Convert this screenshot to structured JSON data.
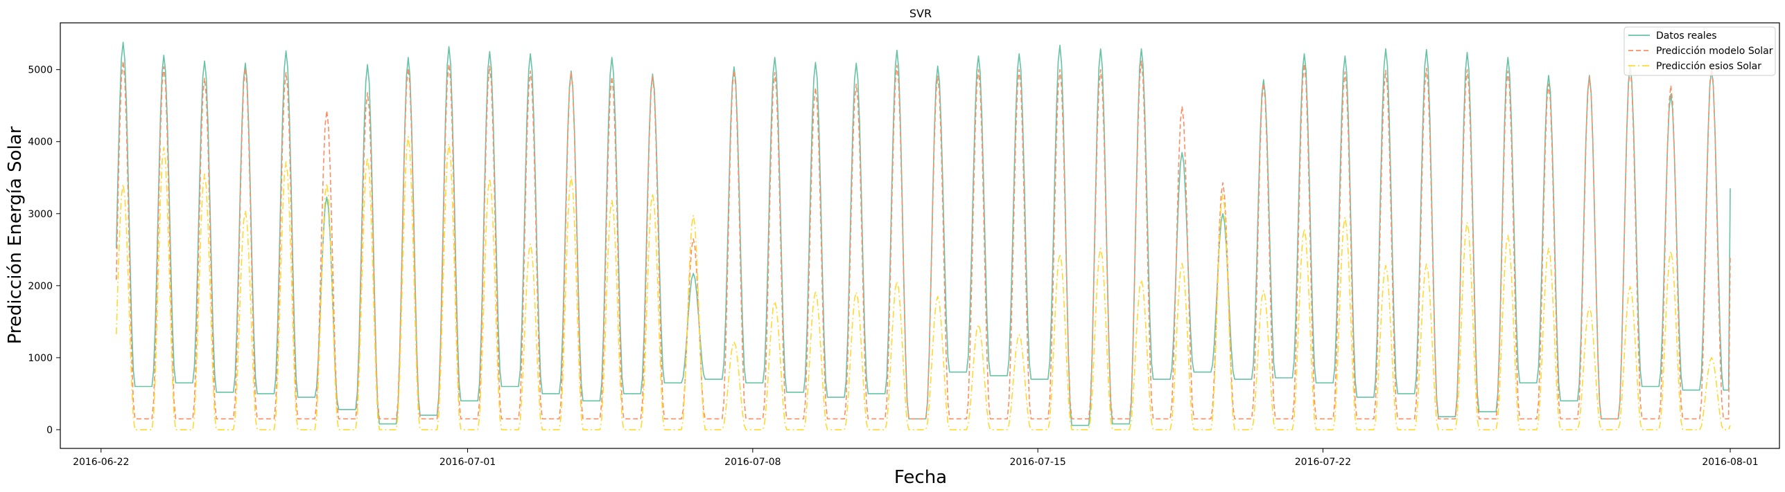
{
  "chart_data": {
    "type": "line",
    "title": "SVR",
    "xlabel": "Fecha",
    "ylabel": "Predicción Energía Solar",
    "xlim": [
      "2016-06-21T00:00",
      "2016-08-02T05:00"
    ],
    "ylim": [
      -260,
      5650
    ],
    "x_ticks": [
      "2016-06-22",
      "2016-07-01",
      "2016-07-08",
      "2016-07-15",
      "2016-07-22",
      "2016-08-01"
    ],
    "y_ticks": [
      0,
      1000,
      2000,
      3000,
      4000,
      5000
    ],
    "grid": false,
    "legend": "top-right",
    "x_start": "2016-06-22",
    "days": 40,
    "sampling": "hourly",
    "series": [
      {
        "name": "Datos reales",
        "color": "#66c2a5",
        "style": "solid",
        "night_values": [
          700,
          600,
          650,
          520,
          500,
          450,
          280,
          80,
          200,
          400,
          600,
          500,
          400,
          500,
          650,
          700,
          650,
          520,
          450,
          500,
          150,
          800,
          750,
          700,
          60,
          80,
          700,
          800,
          700,
          720,
          650,
          450,
          500,
          180,
          250,
          650,
          400,
          150,
          600,
          550
        ],
        "daily_peaks": [
          5380,
          5200,
          5120,
          5090,
          5260,
          3230,
          5070,
          5170,
          5320,
          5250,
          5220,
          4980,
          5170,
          4940,
          2170,
          5040,
          5170,
          5100,
          5090,
          5270,
          5050,
          5190,
          5220,
          5340,
          5290,
          5290,
          3850,
          3000,
          4860,
          5220,
          5190,
          5290,
          5280,
          5240,
          5170,
          4920,
          4920,
          5060,
          4660,
          5000
        ],
        "last_value": 3350
      },
      {
        "name": "Predicción modelo Solar",
        "color": "#fc8d62",
        "style": "dashed",
        "night_values": [
          150,
          150,
          150,
          150,
          150,
          150,
          150,
          150,
          150,
          150,
          150,
          150,
          150,
          150,
          150,
          150,
          150,
          150,
          150,
          150,
          150,
          150,
          150,
          150,
          150,
          150,
          150,
          150,
          150,
          150,
          150,
          150,
          150,
          150,
          150,
          150,
          150,
          150,
          150,
          150
        ],
        "daily_peaks": [
          5120,
          5040,
          4880,
          5020,
          4960,
          4430,
          4680,
          5020,
          5080,
          5050,
          4980,
          4970,
          4900,
          4910,
          2650,
          4990,
          4960,
          4750,
          4800,
          5060,
          4910,
          5000,
          5000,
          5000,
          5000,
          5120,
          4490,
          3430,
          4810,
          5080,
          4970,
          4990,
          5020,
          5000,
          4980,
          4800,
          4900,
          5020,
          4780,
          5050
        ],
        "last_value": 2400
      },
      {
        "name": "Predicción esios Solar",
        "color": "#ffd92f",
        "style": "dashdot",
        "night_values": [
          0,
          0,
          0,
          0,
          0,
          0,
          0,
          0,
          0,
          0,
          0,
          0,
          0,
          0,
          0,
          0,
          0,
          0,
          0,
          0,
          0,
          0,
          0,
          0,
          0,
          0,
          0,
          0,
          0,
          0,
          0,
          0,
          0,
          0,
          0,
          0,
          0,
          0,
          0,
          0
        ],
        "daily_peaks": [
          3410,
          3920,
          3550,
          3040,
          3720,
          3420,
          3780,
          4070,
          3970,
          3490,
          2580,
          3520,
          3190,
          3280,
          2980,
          1220,
          1780,
          1910,
          1910,
          2060,
          1850,
          1460,
          1320,
          2440,
          2520,
          2080,
          2310,
          3270,
          1930,
          2790,
          2950,
          2280,
          2300,
          2880,
          2700,
          2520,
          1700,
          1990,
          2480,
          1000
        ],
        "last_value": 60
      }
    ]
  }
}
